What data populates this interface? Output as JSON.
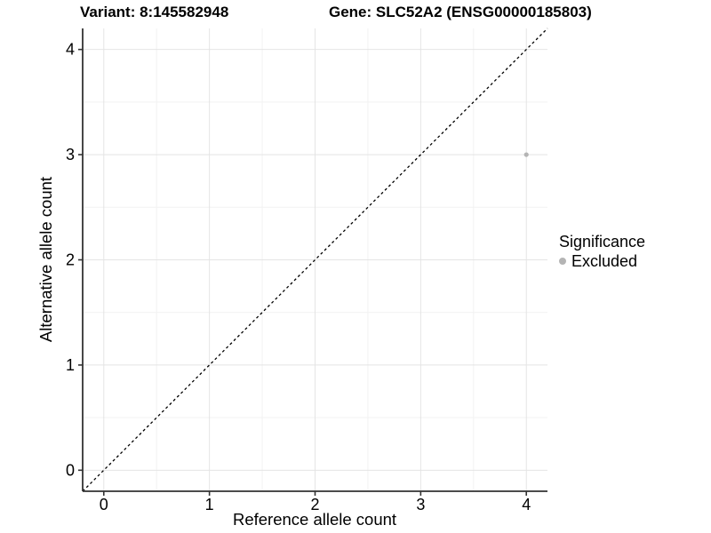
{
  "figure": {
    "title_left": "Variant: 8:145582948",
    "title_right": "Gene: SLC52A2 (ENSG00000185803)"
  },
  "legend": {
    "title": "Significance",
    "entries": [
      {
        "label": "Excluded",
        "marker_color": "#b4b4b4"
      }
    ]
  },
  "chart_data": {
    "type": "scatter",
    "title": "Variant: 8:145582948   Gene: SLC52A2 (ENSG00000185803)",
    "xlabel": "Reference allele count",
    "ylabel": "Alternative allele count",
    "xlim": [
      -0.2,
      4.2
    ],
    "ylim": [
      -0.2,
      4.2
    ],
    "x_ticks": [
      0,
      1,
      2,
      3,
      4
    ],
    "y_ticks": [
      0,
      1,
      2,
      3,
      4
    ],
    "minor_gridlines": [
      0.5,
      1.5,
      2.5,
      3.5
    ],
    "grid": true,
    "legend_position": "right",
    "legend_title": "Significance",
    "series": [
      {
        "name": "Excluded",
        "color": "#b4b4b4",
        "points": [
          {
            "x": 4,
            "y": 3
          }
        ]
      }
    ],
    "reference_line": {
      "kind": "identity",
      "equation": "y = x",
      "style": "dashed",
      "color": "#000000"
    }
  },
  "colors": {
    "background": "#ffffff",
    "grid_major": "#e4e4e4",
    "grid_minor": "#f2f2f2",
    "axis_line": "#333333",
    "tick_label": "#000000",
    "point": "#b4b4b4",
    "dashed_line": "#000000"
  }
}
